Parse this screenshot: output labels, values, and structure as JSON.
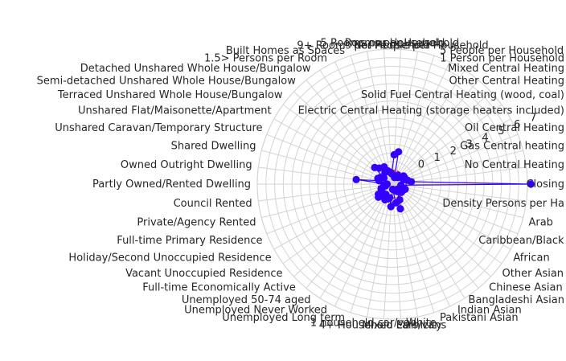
{
  "chart_data": {
    "type": "radar",
    "title": "",
    "grid": true,
    "radial_ticks": [
      "0",
      "1",
      "2",
      "3",
      "4",
      "5",
      "6",
      "7"
    ],
    "rlim": [
      -0.8,
      7
    ],
    "categories": [
      "Closing",
      "No Central Heating",
      "Gas Central heating",
      "Oil Central Heating",
      "Electric Central Heating (storage heaters included)",
      "Solid Fuel Central Heating (wood, coal)",
      "Other Central Heating",
      "Mixed Central Heating",
      "1 Person per Household",
      "5 People per Household",
      "4 People per Household",
      "3 People per Household",
      "2 People per Household",
      "1 Room per Household",
      "5 Rooms per Household",
      "9+ Rooms per Household",
      "No Rooms Per Household",
      "9+ Rooms per Household 2",
      "Built Homes as Spaces",
      "1.5> Persons per Room",
      "Detached Unshared Whole House/Bungalow",
      "Semi-detached Unshared Whole House/Bungalow",
      "Terraced Unshared Whole House/Bungalow",
      "Unshared Flat/Maisonette/Apartment",
      "Unshared Caravan/Temporary Structure",
      "Shared Dwelling",
      "Owned Outright Dwelling",
      "Partly Owned/Rented Dwelling",
      "Council Rented",
      "Private/Agency Rented",
      "Full-time Primary Residence",
      "Holiday/Second Unoccupied Residence",
      "Vacant Unoccupied Residence",
      "Full-time Economically Active",
      "Unemployed 50-74 aged",
      "Unemployed Never Worked",
      "Unemployed Long term",
      "1 household car/van",
      "4+ Household cars/vans",
      "Mixed Ethnicity",
      "White",
      "Pakistani Asian",
      "Indian Asian",
      "Bangladeshi Asian",
      "Chinese Asian",
      "Other Asian",
      "African",
      "Caribbean/Black",
      "Arab",
      "Density Persons per Ha"
    ],
    "visible_labels": [
      "Closing",
      "No Central Heating",
      "Gas Central heating",
      "Oil Central Heating",
      "Electric Central Heating (storage heaters included)",
      "Solid Fuel Central Heating (wood, coal)",
      "Other Central Heating",
      "Mixed Central Heating",
      "1 Person per Household",
      "5 People per Household",
      "No. People per Household",
      "Rooms per Household",
      "5 Rooms per Household",
      "9+ Rooms per Household",
      "Built Homes as Spaces",
      "1.5> Persons per Room",
      "Detached Unshared Whole House/Bungalow",
      "Semi-detached Unshared Whole House/Bungalow",
      "Terraced Unshared Whole House/Bungalow",
      "Unshared Flat/Maisonette/Apartment",
      "Unshared Caravan/Temporary Structure",
      "Shared Dwelling",
      "Owned Outright Dwelling",
      "Partly Owned/Rented Dwelling",
      "Council Rented",
      "Private/Agency Rented",
      "Full-time Primary Residence",
      "Holiday/Second Unoccupied Residence",
      "Vacant Unoccupied Residence",
      "Full-time Economically Active",
      "Unemployed 50-74 aged",
      "Unemployed Never Worked",
      "Unemployed Long term",
      "1 household car/van",
      "4+ Household cars/vans",
      "Mixed Ethnicity",
      "White",
      "Pakistani Asian",
      "Indian Asian",
      "Bangladeshi Asian",
      "Chinese Asian",
      "Other Asian",
      "African",
      "Caribbean/Black",
      "Arab",
      "Density Persons per Ha"
    ],
    "series": [
      {
        "values": [
          7.2,
          0.3,
          0.1,
          -0.1,
          0.0,
          0.0,
          -0.2,
          -0.3,
          -0.2,
          -0.3,
          -0.4,
          1.1,
          0.9,
          -0.2,
          -0.1,
          0.0,
          0.3,
          0.0,
          0.4,
          0.6,
          -0.2,
          0.0,
          0.1,
          0.0,
          1.3,
          -0.5,
          -0.3,
          -0.4,
          -0.1,
          -0.1,
          0.2,
          0.3,
          0.1,
          -0.1,
          0.2,
          0.1,
          0.0,
          0.5,
          -0.5,
          0.3,
          0.7,
          0.2,
          -0.3,
          -0.4,
          -0.1,
          -0.1,
          -0.2,
          0.0,
          -0.3,
          -0.3
        ],
        "color": "#3300ff"
      }
    ],
    "reference_series": [
      {
        "values": "all zeros",
        "color": "#ff0000"
      }
    ]
  }
}
